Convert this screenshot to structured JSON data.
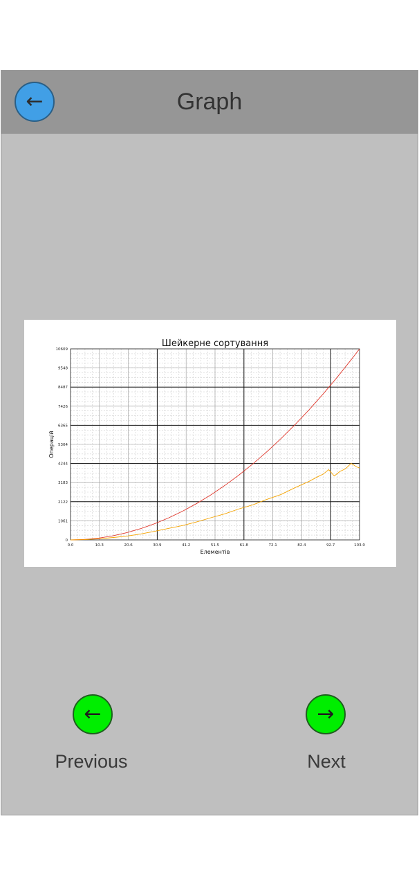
{
  "header": {
    "title": "Graph",
    "back_icon": "←"
  },
  "navigation": {
    "previous_icon": "←",
    "previous_label": "Previous",
    "next_icon": "→",
    "next_label": "Next"
  },
  "colors": {
    "header_bg": "#969696",
    "app_bg": "#bfbfbf",
    "back_button": "#419fe6",
    "nav_button": "#00ee00",
    "series_red": "#e0382c",
    "series_orange": "#f5a300"
  },
  "chart_data": {
    "type": "line",
    "title": "Шейкерне сортування",
    "xlabel": "Елементів",
    "ylabel": "Операцій",
    "xlim": [
      0.0,
      103.0
    ],
    "ylim": [
      0,
      10609
    ],
    "x_ticks": [
      "0.0",
      "10.3",
      "20.6",
      "30.9",
      "41.2",
      "51.5",
      "61.8",
      "72.1",
      "82.4",
      "92.7",
      "103.0"
    ],
    "y_ticks": [
      "0",
      "1061",
      "2122",
      "3183",
      "4244",
      "5304",
      "6365",
      "7426",
      "8487",
      "9548",
      "10609"
    ],
    "grid": true,
    "series": [
      {
        "color": "#e0382c",
        "x": [
          0,
          5,
          10,
          15,
          20,
          25,
          30,
          35,
          40,
          45,
          50,
          55,
          60,
          65,
          70,
          75,
          80,
          85,
          90,
          95,
          100,
          103
        ],
        "y": [
          0,
          25,
          100,
          225,
          400,
          625,
          900,
          1225,
          1600,
          2025,
          2500,
          3025,
          3600,
          4225,
          4900,
          5625,
          6400,
          7225,
          8100,
          9025,
          10000,
          10609
        ]
      },
      {
        "color": "#f5a300",
        "x": [
          0,
          5,
          10,
          15,
          20,
          25,
          30,
          35,
          40,
          45,
          50,
          55,
          60,
          65,
          70,
          75,
          80,
          85,
          88,
          90,
          92,
          94,
          96,
          98,
          100,
          101,
          102,
          103
        ],
        "y": [
          0,
          15,
          60,
          130,
          210,
          330,
          480,
          640,
          800,
          1000,
          1230,
          1450,
          1720,
          1950,
          2250,
          2520,
          2900,
          3250,
          3500,
          3650,
          3900,
          3550,
          3800,
          3950,
          4250,
          4150,
          4050,
          4000
        ]
      }
    ]
  }
}
